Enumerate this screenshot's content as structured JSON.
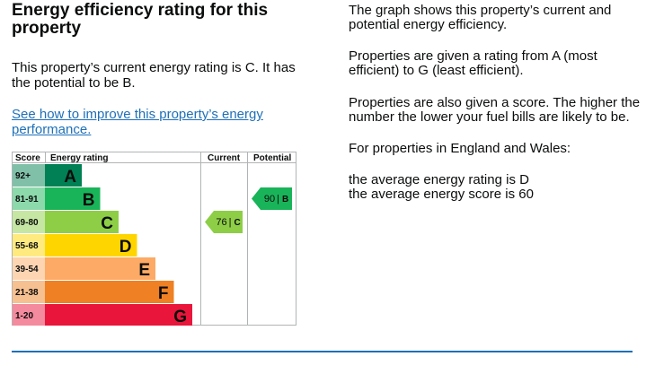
{
  "heading": "Energy efficiency rating for this property",
  "current_statement": "This property’s current energy rating is C. It has the potential to be B.",
  "improve_link": "See how to improve this property’s energy performance.",
  "info": {
    "p1": "The graph shows this property’s current and potential energy efficiency.",
    "p2": "Properties are given a rating from A (most efficient) to G (least efficient).",
    "p3": "Properties are also given a score. The higher the number the lower your fuel bills are likely to be.",
    "p4": "For properties in England and Wales:",
    "p5_line1": "the average energy rating is D",
    "p5_line2": "the average energy score is 60"
  },
  "chart": {
    "headers": {
      "score": "Score",
      "rating": "Energy rating",
      "current": "Current",
      "potential": "Potential"
    },
    "bands": [
      {
        "score": "92+",
        "letter": "A",
        "color": "#008054",
        "score_bg": "#80c0a9",
        "rank": 1
      },
      {
        "score": "81-91",
        "letter": "B",
        "color": "#19b459",
        "score_bg": "#8cd9ac",
        "rank": 2
      },
      {
        "score": "69-80",
        "letter": "C",
        "color": "#8dce46",
        "score_bg": "#c6e7a3",
        "rank": 3
      },
      {
        "score": "55-68",
        "letter": "D",
        "color": "#ffd500",
        "score_bg": "#ffea80",
        "rank": 4
      },
      {
        "score": "39-54",
        "letter": "E",
        "color": "#fcaa65",
        "score_bg": "#fed5b2",
        "rank": 5
      },
      {
        "score": "21-38",
        "letter": "F",
        "color": "#ef8023",
        "score_bg": "#f7c091",
        "rank": 6
      },
      {
        "score": "1-20",
        "letter": "G",
        "color": "#e9153b",
        "score_bg": "#f48a9d",
        "rank": 7
      }
    ],
    "current": {
      "score": "76",
      "letter": "C",
      "band_index": 2,
      "color": "#8dce46"
    },
    "potential": {
      "score": "90",
      "letter": "B",
      "band_index": 1,
      "color": "#19b459"
    }
  }
}
